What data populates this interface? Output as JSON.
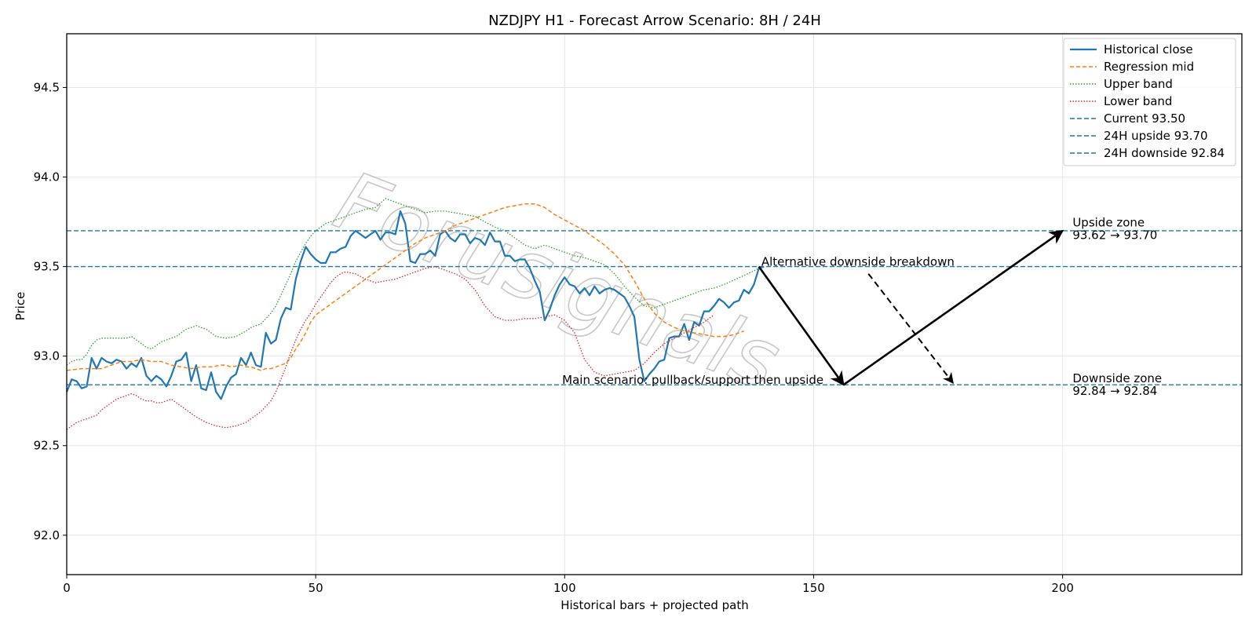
{
  "chart_data": {
    "type": "line",
    "title": "NZDJPY H1 - Forecast Arrow Scenario: 8H / 24H",
    "xlabel": "Historical bars + projected path",
    "ylabel": "Price",
    "xlim": [
      0,
      236
    ],
    "ylim": [
      91.78,
      94.8
    ],
    "x_ticks": [
      0,
      50,
      100,
      150,
      200
    ],
    "x_tick_labels": [
      "0",
      "50",
      "100",
      "150",
      "200"
    ],
    "y_ticks": [
      92.0,
      92.5,
      93.0,
      93.5,
      94.0,
      94.5
    ],
    "y_tick_labels": [
      "92.0",
      "92.5",
      "93.0",
      "93.5",
      "94.0",
      "94.5"
    ],
    "grid": true,
    "legend_position": "top-right",
    "colors": {
      "historical": "#1f77b4",
      "regression": "#ff7f0e",
      "upper": "#2ca02c",
      "lower": "#d62728",
      "hline": "#1f77b4"
    },
    "legend": [
      {
        "label": "Historical close",
        "color": "#1f77b4",
        "style": "solid"
      },
      {
        "label": "Regression mid",
        "color": "#ff7f0e",
        "style": "dashed"
      },
      {
        "label": "Upper band",
        "color": "#2ca02c",
        "style": "dotted"
      },
      {
        "label": "Lower band",
        "color": "#d62728",
        "style": "dotted"
      },
      {
        "label": "Current 93.50",
        "color": "#1f77b4",
        "style": "hdash"
      },
      {
        "label": "24H upside 93.70",
        "color": "#1f77b4",
        "style": "hdash"
      },
      {
        "label": "24H downside 92.84",
        "color": "#1f77b4",
        "style": "hdash"
      }
    ],
    "hlines": [
      93.5,
      93.7,
      92.84
    ],
    "series": [
      {
        "name": "Historical close",
        "x_start": 0,
        "values": [
          92.8,
          92.87,
          92.86,
          92.82,
          92.83,
          92.99,
          92.93,
          92.99,
          92.97,
          92.96,
          92.98,
          92.97,
          92.93,
          92.96,
          92.94,
          92.99,
          92.89,
          92.86,
          92.89,
          92.87,
          92.83,
          92.89,
          92.97,
          92.98,
          93.02,
          92.86,
          92.95,
          92.82,
          92.81,
          92.91,
          92.8,
          92.76,
          92.83,
          92.88,
          92.9,
          92.99,
          92.95,
          93.02,
          92.95,
          92.94,
          93.13,
          93.07,
          93.09,
          93.21,
          93.27,
          93.26,
          93.43,
          93.53,
          93.61,
          93.57,
          93.54,
          93.52,
          93.52,
          93.58,
          93.58,
          93.6,
          93.61,
          93.67,
          93.7,
          93.68,
          93.66,
          93.68,
          93.7,
          93.65,
          93.69,
          93.69,
          93.68,
          93.81,
          93.74,
          93.53,
          93.52,
          93.57,
          93.57,
          93.59,
          93.56,
          93.68,
          93.7,
          93.66,
          93.64,
          93.68,
          93.68,
          93.63,
          93.66,
          93.65,
          93.62,
          93.69,
          93.64,
          93.64,
          93.56,
          93.56,
          93.53,
          93.54,
          93.54,
          93.49,
          93.42,
          93.36,
          93.2,
          93.26,
          93.34,
          93.4,
          93.44,
          93.4,
          93.39,
          93.35,
          93.38,
          93.34,
          93.39,
          93.35,
          93.37,
          93.38,
          93.37,
          93.35,
          93.33,
          93.28,
          93.22,
          92.98,
          92.86,
          92.9,
          92.93,
          92.97,
          92.98,
          93.1,
          93.11,
          93.11,
          93.18,
          93.09,
          93.19,
          93.17,
          93.25,
          93.25,
          93.28,
          93.32,
          93.3,
          93.27,
          93.3,
          93.31,
          93.37,
          93.35,
          93.4,
          93.49,
          93.5
        ]
      },
      {
        "name": "Regression mid",
        "x_start": 0,
        "values": [
          92.92,
          92.93,
          92.93,
          92.93,
          92.95,
          92.97,
          92.97,
          92.97,
          92.98,
          92.97,
          92.97,
          92.95,
          92.94,
          92.93,
          92.94,
          92.94,
          92.95,
          92.95,
          92.94,
          92.95,
          92.94,
          92.94,
          92.93,
          92.92,
          92.93,
          92.93,
          92.94,
          92.95,
          92.96,
          92.99,
          93.04,
          93.08,
          93.13,
          93.19,
          93.23,
          93.27,
          93.31,
          93.35,
          93.39,
          93.43,
          93.47,
          93.51,
          93.55,
          93.59,
          93.63,
          93.66,
          93.68,
          93.7,
          93.73,
          93.75,
          93.77,
          93.79,
          93.81,
          93.83,
          93.84,
          93.85,
          93.85,
          93.83,
          93.79,
          93.76,
          93.73,
          93.7,
          93.66,
          93.62,
          93.57,
          93.51,
          93.42,
          93.32,
          93.24,
          93.19,
          93.16,
          93.14,
          93.13,
          93.12,
          93.11,
          93.11,
          93.12,
          93.14
        ],
        "x_values": [
          0,
          3,
          5,
          7,
          9,
          11,
          12,
          13,
          15,
          17,
          19,
          21,
          23,
          25,
          27,
          29,
          31,
          32,
          33,
          35,
          36,
          37,
          38,
          39,
          40,
          41,
          42,
          43,
          44,
          45,
          46,
          47,
          48,
          49,
          50,
          52,
          54,
          56,
          58,
          60,
          62,
          64,
          66,
          68,
          70,
          72,
          74,
          76,
          78,
          80,
          82,
          84,
          86,
          88,
          90,
          92,
          94,
          96,
          98,
          100,
          102,
          104,
          106,
          108,
          110,
          112,
          114,
          116,
          118,
          120,
          122,
          124,
          126,
          128,
          130,
          132,
          134,
          136
        ]
      },
      {
        "name": "Upper band",
        "x_start": 0,
        "values": [
          92.95,
          92.97,
          92.98,
          92.98,
          93.01,
          93.06,
          93.09,
          93.1,
          93.1,
          93.1,
          93.1,
          93.1,
          93.1,
          93.11,
          93.09,
          93.07,
          93.05,
          93.04,
          93.06,
          93.08,
          93.09,
          93.1,
          93.11,
          93.15,
          93.17,
          93.16,
          93.15,
          93.13,
          93.11,
          93.1,
          93.11,
          93.14,
          93.16,
          93.17,
          93.18,
          93.21,
          93.24,
          93.28,
          93.34,
          93.4,
          93.46,
          93.53,
          93.58,
          93.63,
          93.67,
          93.7,
          93.74,
          93.76,
          93.78,
          93.8,
          93.82,
          93.83,
          93.88,
          93.86,
          93.84,
          93.82,
          93.8,
          93.81,
          93.81,
          93.8,
          93.79,
          93.78,
          93.75,
          93.72,
          93.7,
          93.66,
          93.62,
          93.6,
          93.62,
          93.6,
          93.58,
          93.56,
          93.55,
          93.53,
          93.51,
          93.46,
          93.39,
          93.33,
          93.28,
          93.27,
          93.29,
          93.31,
          93.33,
          93.35,
          93.37,
          93.38,
          93.4,
          93.45,
          93.49
        ],
        "x_values": [
          0,
          1,
          2,
          3,
          4,
          5,
          6,
          7,
          8,
          9,
          10,
          11,
          12,
          13,
          14,
          15,
          16,
          17,
          18,
          19,
          20,
          21,
          22,
          24,
          26,
          27,
          28,
          29,
          30,
          32,
          34,
          36,
          37,
          38,
          39,
          40,
          41,
          42,
          43,
          44,
          45,
          46,
          47,
          48,
          49,
          50,
          52,
          54,
          56,
          58,
          60,
          62,
          64,
          66,
          68,
          70,
          72,
          74,
          76,
          78,
          80,
          82,
          84,
          86,
          88,
          90,
          92,
          94,
          96,
          98,
          100,
          102,
          104,
          106,
          108,
          110,
          112,
          114,
          116,
          118,
          120,
          122,
          124,
          126,
          128,
          130,
          132,
          136,
          139
        ]
      },
      {
        "name": "Lower band",
        "x_start": 0,
        "values": [
          92.59,
          92.61,
          92.63,
          92.64,
          92.65,
          92.66,
          92.67,
          92.7,
          92.72,
          92.74,
          92.76,
          92.77,
          92.78,
          92.79,
          92.78,
          92.76,
          92.75,
          92.75,
          92.74,
          92.74,
          92.75,
          92.76,
          92.74,
          92.66,
          92.63,
          92.61,
          92.6,
          92.61,
          92.63,
          92.65,
          92.67,
          92.69,
          92.72,
          92.75,
          92.8,
          92.87,
          92.94,
          93.02,
          93.09,
          93.15,
          93.2,
          93.24,
          93.29,
          93.33,
          93.37,
          93.41,
          93.44,
          93.46,
          93.47,
          93.46,
          93.43,
          93.41,
          93.42,
          93.43,
          93.45,
          93.47,
          93.49,
          93.5,
          93.48,
          93.46,
          93.43,
          93.37,
          93.28,
          93.22,
          93.2,
          93.2,
          93.21,
          93.21,
          93.22,
          93.23,
          93.2,
          93.13,
          92.98,
          92.91,
          92.89,
          92.9,
          92.91,
          92.92,
          92.96,
          93.02,
          93.07,
          93.1,
          93.13,
          93.16,
          93.19,
          93.23
        ],
        "x_values": [
          0,
          1,
          2,
          3,
          4,
          5,
          6,
          7,
          8,
          9,
          10,
          11,
          12,
          13,
          14,
          15,
          16,
          17,
          18,
          19,
          20,
          21,
          22,
          26,
          28,
          30,
          32,
          34,
          36,
          37,
          38,
          39,
          40,
          41,
          42,
          43,
          44,
          45,
          46,
          47,
          48,
          49,
          50,
          51,
          52,
          53,
          54,
          55,
          56,
          58,
          60,
          62,
          64,
          66,
          68,
          70,
          72,
          74,
          76,
          78,
          80,
          82,
          84,
          86,
          88,
          90,
          92,
          94,
          96,
          98,
          100,
          102,
          104,
          106,
          108,
          110,
          112,
          114,
          116,
          118,
          120,
          122,
          124,
          126,
          128,
          130
        ]
      }
    ],
    "arrows": [
      {
        "name": "main-pullback",
        "from": [
          139,
          93.5
        ],
        "to": [
          156,
          92.84
        ],
        "style": "solid"
      },
      {
        "name": "main-upside",
        "from": [
          156,
          92.84
        ],
        "to": [
          200,
          93.7
        ],
        "style": "solid"
      },
      {
        "name": "alt-downside",
        "from": [
          161,
          93.46
        ],
        "to": [
          178,
          92.85
        ],
        "style": "dashed"
      }
    ],
    "annotations": [
      {
        "id": "alt",
        "text": "Alternative downside breakdown",
        "x": 139.5,
        "y": 93.5
      },
      {
        "id": "main",
        "text": "Main scenario: pullback/support then upside",
        "x": 99.5,
        "y": 92.84
      },
      {
        "id": "upside1",
        "text": "Upside zone",
        "x": 202,
        "y": 93.72
      },
      {
        "id": "upside2",
        "text": "93.62 → 93.70",
        "x": 202,
        "y": 93.65
      },
      {
        "id": "down1",
        "text": "Downside zone",
        "x": 202,
        "y": 92.85
      },
      {
        "id": "down2",
        "text": "92.84 → 92.84",
        "x": 202,
        "y": 92.78
      }
    ],
    "watermark": "Forusignals"
  }
}
